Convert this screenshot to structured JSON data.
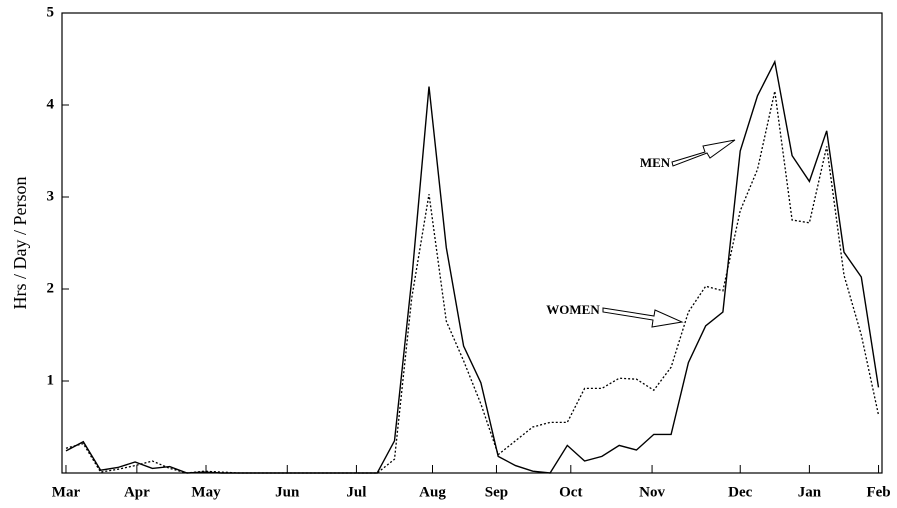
{
  "chart_data": {
    "type": "line",
    "y_label": "Hrs / Day / Person",
    "x": [
      0,
      1,
      2,
      3,
      4,
      5,
      6,
      7,
      8,
      9,
      10,
      11,
      12,
      13,
      14,
      15,
      16,
      17,
      18,
      19,
      20,
      21,
      22,
      23,
      24,
      25,
      26,
      27,
      28,
      29,
      30,
      31,
      32,
      33,
      34,
      35,
      36,
      37,
      38,
      39,
      40,
      41,
      42,
      43,
      44,
      45,
      46,
      47
    ],
    "series": [
      {
        "name": "MEN",
        "color": "#000000",
        "style": "solid",
        "values": [
          0.24,
          0.34,
          0.03,
          0.06,
          0.12,
          0.05,
          0.07,
          0,
          0.01,
          0,
          0,
          0,
          0,
          0,
          0,
          0,
          0,
          0,
          0,
          0.35,
          2.1,
          4.2,
          2.45,
          1.38,
          0.98,
          0.18,
          0.08,
          0.02,
          0,
          0.3,
          0.13,
          0.18,
          0.3,
          0.25,
          0.42,
          0.42,
          1.2,
          1.6,
          1.75,
          3.5,
          4.1,
          4.47,
          3.45,
          3.17,
          3.72,
          2.4,
          2.13,
          0.93
        ]
      },
      {
        "name": "WOMEN",
        "color": "#000000",
        "style": "dotted",
        "values": [
          0.27,
          0.32,
          0.01,
          0.04,
          0.08,
          0.13,
          0.05,
          0,
          0.02,
          0.01,
          0,
          0,
          0,
          0,
          0,
          0,
          0,
          0,
          0,
          0.15,
          1.9,
          3.03,
          1.65,
          1.22,
          0.75,
          0.2,
          0.35,
          0.5,
          0.55,
          0.55,
          0.92,
          0.92,
          1.03,
          1.02,
          0.9,
          1.15,
          1.75,
          2.03,
          1.98,
          2.85,
          3.3,
          4.15,
          2.75,
          2.72,
          3.55,
          2.15,
          1.5,
          0.63
        ]
      }
    ],
    "xlim": [
      -0.23,
      47.2
    ],
    "xticks": [
      {
        "value": 0,
        "label": "Mar"
      },
      {
        "value": 4.1,
        "label": "Apr"
      },
      {
        "value": 8.1,
        "label": "May"
      },
      {
        "value": 12.8,
        "label": "Jun"
      },
      {
        "value": 16.8,
        "label": "Jul"
      },
      {
        "value": 21.2,
        "label": "Aug"
      },
      {
        "value": 24.9,
        "label": "Sep"
      },
      {
        "value": 29.2,
        "label": "Oct"
      },
      {
        "value": 33.9,
        "label": "Nov"
      },
      {
        "value": 39.0,
        "label": "Dec"
      },
      {
        "value": 43.0,
        "label": "Jan"
      },
      {
        "value": 47,
        "label": "Feb"
      }
    ],
    "ylim": [
      0,
      5
    ],
    "yticks": [
      1,
      2,
      3,
      4,
      5
    ],
    "grid": false
  }
}
